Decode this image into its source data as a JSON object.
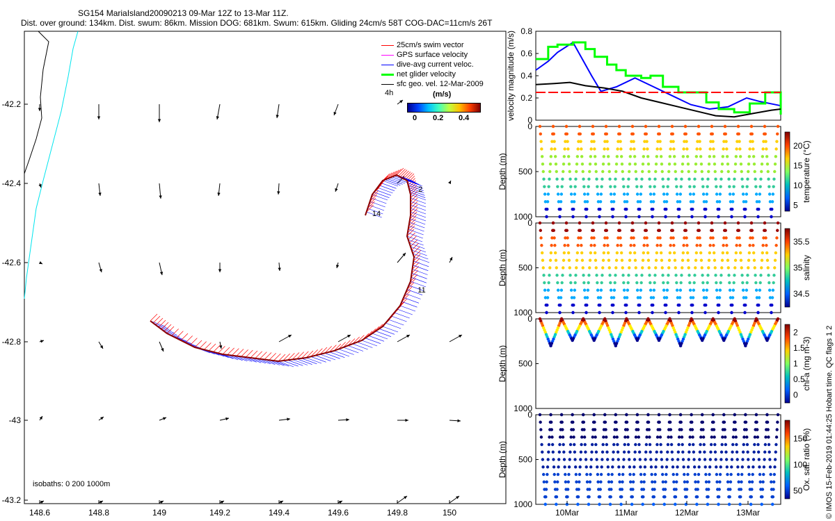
{
  "header": {
    "title": "SG154 MariaIsland20090213 09-Mar 12Z to 13-Mar 11Z.",
    "subtitle": "Dist. over ground: 134km. Dist. swum: 86km. Mission DOG: 681km. Swum: 615km. Gliding 24cm/s 58T COG-DAC=11cm/s 26T"
  },
  "legend": {
    "items": [
      {
        "label": "25cm/s swim vector",
        "color": "#ff0000"
      },
      {
        "label": "GPS surface velocity",
        "color": "#ff00ff"
      },
      {
        "label": "dive-avg current veloc.",
        "color": "#0000ff"
      },
      {
        "label": "net glider velocity",
        "color": "#00ff00"
      },
      {
        "label": "sfc geo. vel. 12-Mar-2009",
        "color": "#000000"
      }
    ],
    "scale_label": "4h",
    "colorbar_title": "(m/s)",
    "colorbar_ticks": [
      "0",
      "0.2",
      "0.4"
    ]
  },
  "map": {
    "isobaths_label": "isobaths: 0   200   1000m",
    "x_ticks": [
      "148.6",
      "148.8",
      "149",
      "149.2",
      "149.4",
      "149.6",
      "149.8",
      "150"
    ],
    "y_ticks": [
      "-42.2",
      "-42.4",
      "-42.6",
      "-42.8",
      "-43",
      "-43.2"
    ],
    "waypoint_labels": [
      "2",
      "14",
      "11"
    ]
  },
  "chart_data": [
    {
      "type": "line",
      "title": "velocity magnitude",
      "ylabel": "velocity magnitude (m/s)",
      "ylim": [
        0,
        0.8
      ],
      "y_ticks": [
        "0",
        "0.2",
        "0.4",
        "0.6",
        "0.8"
      ],
      "series": [
        {
          "name": "dive-avg current veloc.",
          "color": "#0000ff",
          "x": [
            0,
            0.2,
            0.35,
            0.6,
            0.75,
            0.9,
            1.05,
            1.3,
            1.6,
            1.9,
            2.2,
            2.5,
            2.8,
            3.1,
            3.4,
            3.6,
            3.95
          ],
          "y": [
            0.45,
            0.53,
            0.61,
            0.7,
            0.55,
            0.4,
            0.26,
            0.3,
            0.38,
            0.3,
            0.22,
            0.14,
            0.1,
            0.12,
            0.2,
            0.17,
            0.13
          ]
        },
        {
          "name": "net glider velocity",
          "color": "#00ff00",
          "x": [
            0,
            0.2,
            0.35,
            0.6,
            0.8,
            0.95,
            1.15,
            1.3,
            1.45,
            1.7,
            1.85,
            2.05,
            2.3,
            2.5,
            2.75,
            2.95,
            3.2,
            3.45,
            3.7,
            3.95
          ],
          "y": [
            0.55,
            0.66,
            0.68,
            0.7,
            0.64,
            0.57,
            0.5,
            0.45,
            0.4,
            0.38,
            0.4,
            0.3,
            0.25,
            0.25,
            0.16,
            0.1,
            0.07,
            0.15,
            0.25,
            0.05
          ]
        },
        {
          "name": "black speed",
          "color": "#000000",
          "x": [
            0,
            0.3,
            0.55,
            0.8,
            1.1,
            1.4,
            1.7,
            2.0,
            2.3,
            2.6,
            2.9,
            3.2,
            3.5,
            3.8,
            3.95
          ],
          "y": [
            0.32,
            0.33,
            0.34,
            0.31,
            0.29,
            0.26,
            0.2,
            0.16,
            0.12,
            0.08,
            0.04,
            0.03,
            0.06,
            0.09,
            0.1
          ]
        },
        {
          "name": "reference",
          "color": "#ff0000",
          "dashed": true,
          "x": [
            0,
            3.95
          ],
          "y": [
            0.25,
            0.25
          ]
        }
      ]
    },
    {
      "type": "scatter",
      "title": "temperature",
      "ylabel": "Depth (m)",
      "y_ticks": [
        "0",
        "500",
        "1000"
      ],
      "colorbar_label": "temperature (°C)",
      "colorbar_ticks": [
        "5",
        "10",
        "15",
        "20"
      ],
      "dives": 18,
      "max_depth": 1000
    },
    {
      "type": "scatter",
      "title": "salinity",
      "ylabel": "Depth (m)",
      "y_ticks": [
        "0",
        "500",
        "1000"
      ],
      "colorbar_label": "salinity",
      "colorbar_ticks": [
        "34.5",
        "35",
        "35.5"
      ],
      "dives": 18,
      "max_depth": 1000
    },
    {
      "type": "scatter",
      "title": "chl-a",
      "ylabel": "Depth (m)",
      "y_ticks": [
        "0",
        "500",
        "1000"
      ],
      "colorbar_label": "chl-a (mg m-3)",
      "colorbar_ticks": [
        "0",
        "0.5",
        "1",
        "1.5",
        "2"
      ],
      "dives": 11,
      "max_depth": 300
    },
    {
      "type": "scatter",
      "title": "oxygen saturation",
      "ylabel": "Depth (m)",
      "y_ticks": [
        "0",
        "500",
        "1000"
      ],
      "colorbar_label": "Ox. sat. ratio (%)",
      "colorbar_ticks": [
        "50",
        "100",
        "150"
      ],
      "x_ticks": [
        "10Mar",
        "11Mar",
        "12Mar",
        "13Mar"
      ],
      "dives": 22,
      "max_depth": 1000
    }
  ],
  "footer": {
    "qc_flags": "Hobart time. QC flags 1  2",
    "copyright": "© IMOS 15-Feb-2019 01:44:25"
  }
}
